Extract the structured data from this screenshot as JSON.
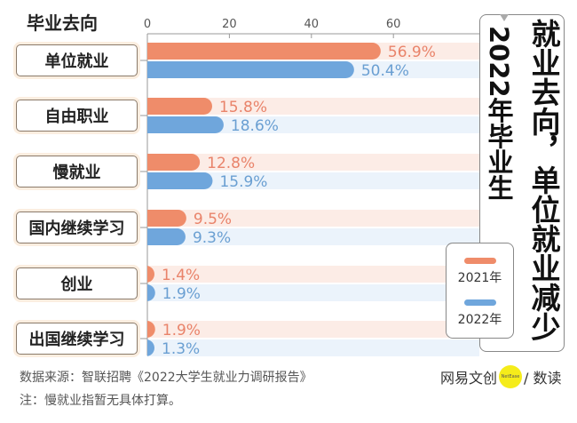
{
  "chart_data": {
    "type": "bar",
    "orientation": "horizontal",
    "title": "就业去向，单位就业减少",
    "subtitle": "2022年毕业生",
    "category_axis_title": "毕业去向",
    "categories": [
      "单位就业",
      "自由职业",
      "慢就业",
      "国内继续学习",
      "创业",
      "出国继续学习"
    ],
    "series": [
      {
        "name": "2021年",
        "values": [
          56.9,
          15.8,
          12.8,
          9.5,
          1.4,
          1.9
        ],
        "labels": [
          "56.9%",
          "15.8%",
          "12.8%",
          "9.5%",
          "1.4%",
          "1.9%"
        ],
        "color": "#ef8c6a",
        "track_color": "#fcece6",
        "label_color": "#e9836a"
      },
      {
        "name": "2022年",
        "values": [
          50.4,
          18.6,
          15.9,
          9.3,
          1.9,
          1.3
        ],
        "labels": [
          "50.4%",
          "18.6%",
          "15.9%",
          "9.3%",
          "1.9%",
          "1.3%"
        ],
        "color": "#6fa6dc",
        "track_color": "#ebf3fb",
        "label_color": "#6a9fd2"
      }
    ],
    "xticks": [
      0,
      20,
      40,
      60
    ],
    "xtick_labels": [
      "0",
      "20",
      "40",
      "60"
    ],
    "xlim": [
      0,
      80
    ],
    "grid": false,
    "legend_placement": "bottom-right"
  },
  "footer": {
    "source": "数据来源：智联招聘《2022大学生就业力调研报告》",
    "note": "注：慢就业指暂无具体打算。",
    "logo_text": "网易文创",
    "logo_badge": "NetEase",
    "logo_suffix": "/ 数读"
  }
}
